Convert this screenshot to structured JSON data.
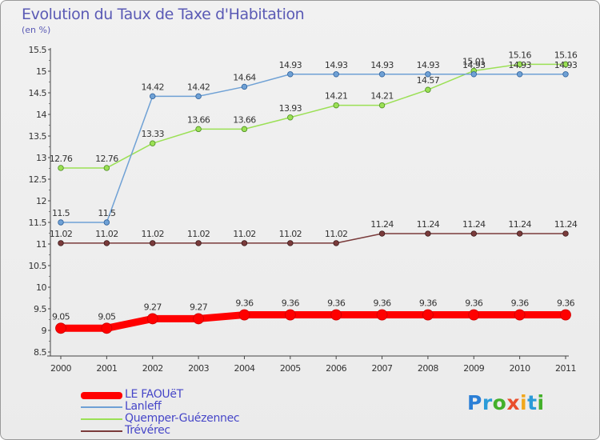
{
  "title": "Evolution du Taux de Taxe d'Habitation",
  "subtitle": "(en %)",
  "logo": {
    "letters": [
      {
        "ch": "P",
        "color": "#2b7fd6"
      },
      {
        "ch": "r",
        "color": "#2b9bd8"
      },
      {
        "ch": "o",
        "color": "#43b02a"
      },
      {
        "ch": "x",
        "color": "#e94f2c"
      },
      {
        "ch": "i",
        "color": "#f2a71b"
      },
      {
        "ch": "t",
        "color": "#2b9bd8"
      },
      {
        "ch": "i",
        "color": "#43b02a"
      }
    ]
  },
  "chart_data": {
    "type": "line",
    "title": "Evolution du Taux de Taxe d'Habitation",
    "ylabel": "(en %)",
    "xlabel": "",
    "x": [
      "2000",
      "2001",
      "2002",
      "2003",
      "2004",
      "2005",
      "2006",
      "2007",
      "2008",
      "2009",
      "2010",
      "2011"
    ],
    "ylim": [
      8.5,
      15.5
    ],
    "yticks": [
      "8.5",
      "9",
      "9.5",
      "10",
      "10.5",
      "11",
      "11.5",
      "12",
      "12.5",
      "13",
      "13.5",
      "14",
      "14.5",
      "15",
      "15.5"
    ],
    "grid": false,
    "legend_position": "bottom-left",
    "series": [
      {
        "name": "LE FAOUëT",
        "color": "#ff0000",
        "values": [
          9.05,
          9.05,
          9.27,
          9.27,
          9.36,
          9.36,
          9.36,
          9.36,
          9.36,
          9.36,
          9.36,
          9.36
        ],
        "labels": [
          "9.05",
          "9.05",
          "9.27",
          "9.27",
          "9.36",
          "9.36",
          "9.36",
          "9.36",
          "9.36",
          "9.36",
          "9.36",
          "9.36"
        ]
      },
      {
        "name": "Lanleff",
        "color": "#6fa1d5",
        "values": [
          11.5,
          11.5,
          14.42,
          14.42,
          14.64,
          14.93,
          14.93,
          14.93,
          14.93,
          14.93,
          14.93,
          14.93
        ],
        "labels": [
          "11.5",
          "11.5",
          "14.42",
          "14.42",
          "14.64",
          "14.93",
          "14.93",
          "14.93",
          "14.93",
          "14.93",
          "14.93",
          "14.93"
        ]
      },
      {
        "name": "Quemper-Guézennec",
        "color": "#9be055",
        "values": [
          12.76,
          12.76,
          13.33,
          13.66,
          13.66,
          13.93,
          14.21,
          14.21,
          14.57,
          15.01,
          15.16,
          15.16
        ],
        "labels": [
          "12.76",
          "12.76",
          "13.33",
          "13.66",
          "13.66",
          "13.93",
          "14.21",
          "14.21",
          "14.57",
          "15.01",
          "15.16",
          "15.16"
        ]
      },
      {
        "name": "Trévérec",
        "color": "#7a3b3b",
        "values": [
          11.02,
          11.02,
          11.02,
          11.02,
          11.02,
          11.02,
          11.02,
          11.24,
          11.24,
          11.24,
          11.24,
          11.24
        ],
        "labels": [
          "11.02",
          "11.02",
          "11.02",
          "11.02",
          "11.02",
          "11.02",
          "11.02",
          "11.24",
          "11.24",
          "11.24",
          "11.24",
          "11.24"
        ]
      }
    ]
  }
}
